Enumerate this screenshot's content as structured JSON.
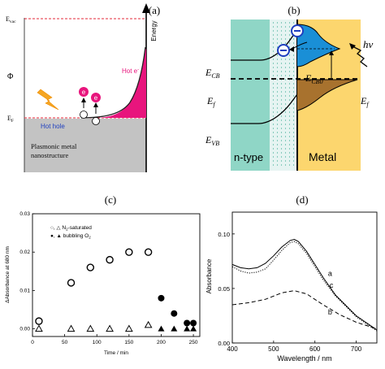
{
  "panels": {
    "a": {
      "label": "(a)",
      "evac": "E",
      "evac_sub": "vac",
      "phi": "Φ",
      "ef": "E",
      "ef_sub": "F",
      "energy_axis": "Energy",
      "hot_electron": "Hot e",
      "hot_electron_sup": "-",
      "electron_symbol": "e",
      "hot_hole": "Hot hole",
      "metal_line1": "Plasmonic metal",
      "metal_line2": "nanostructure",
      "colors": {
        "accent": "#e8157d",
        "dashed": "#e52a3a",
        "metal": "#c3c3c3",
        "bolt": "#f5a623",
        "hole_label": "#1f3fbf"
      }
    },
    "b": {
      "label": "(b)",
      "ecb": "E",
      "ecb_sub": "CB",
      "ef_left": "E",
      "ef_left_sub": "f",
      "evb": "E",
      "evb_sub": "VB",
      "ecb0": "E",
      "ecb0_sub": "CB0",
      "ef_right": "E",
      "ef_right_sub": "f",
      "hv": "hν",
      "electron_symbol": "⊖",
      "semiconductor": "n-type",
      "metal": "Metal",
      "colors": {
        "semiconductor": "#8fd6c6",
        "metal": "#fcd66e",
        "hot_electrons": "#1a8fd6",
        "filled": "#a8722e"
      }
    }
  },
  "chart_data": [
    {
      "panel": "c",
      "label": "(c)",
      "type": "scatter",
      "xlabel": "Time / min",
      "ylabel": "ΔAbsorbance at 680 nm",
      "xlim": [
        0,
        260
      ],
      "ylim": [
        -0.002,
        0.03
      ],
      "xticks": [
        "0",
        "50",
        "100",
        "150",
        "200",
        "250"
      ],
      "yticks": [
        "0.00",
        "0.01",
        "0.02",
        "0.03"
      ],
      "legend": {
        "line1_symbols": "○, △",
        "line1_text": "N",
        "line1_sub": "2",
        "line1_tail": "-saturated",
        "line2_symbols": "●, ▲",
        "line2_text": "bubbling O",
        "line2_sub": "2"
      },
      "series": [
        {
          "marker": "open-circle",
          "points": [
            [
              10,
              0.002
            ],
            [
              60,
              0.012
            ],
            [
              90,
              0.016
            ],
            [
              120,
              0.018
            ],
            [
              150,
              0.02
            ],
            [
              180,
              0.02
            ]
          ]
        },
        {
          "marker": "filled-circle",
          "points": [
            [
              200,
              0.008
            ],
            [
              220,
              0.004
            ],
            [
              240,
              0.0015
            ],
            [
              250,
              0.0015
            ]
          ]
        },
        {
          "marker": "open-triangle",
          "points": [
            [
              10,
              0.0
            ],
            [
              60,
              0.0
            ],
            [
              90,
              0.0
            ],
            [
              120,
              0.0
            ],
            [
              150,
              0.0
            ],
            [
              180,
              0.001
            ]
          ]
        },
        {
          "marker": "filled-triangle",
          "points": [
            [
              200,
              0.0
            ],
            [
              220,
              0.0
            ],
            [
              240,
              0.0
            ],
            [
              250,
              0.0
            ]
          ]
        }
      ]
    },
    {
      "panel": "d",
      "label": "(d)",
      "type": "line",
      "xlabel": "Wavelength / nm",
      "ylabel": "Absorbance",
      "xlim": [
        400,
        750
      ],
      "ylim": [
        0,
        0.12
      ],
      "xticks": [
        "400",
        "500",
        "600",
        "700"
      ],
      "yticks": [
        "0.00",
        "0.05",
        "0.10"
      ],
      "series": [
        {
          "name": "a",
          "style": "solid",
          "x": [
            400,
            420,
            440,
            460,
            480,
            500,
            520,
            540,
            550,
            560,
            580,
            600,
            620,
            650,
            700,
            750
          ],
          "y": [
            0.072,
            0.069,
            0.068,
            0.069,
            0.073,
            0.08,
            0.088,
            0.094,
            0.095,
            0.093,
            0.084,
            0.072,
            0.06,
            0.044,
            0.025,
            0.012
          ]
        },
        {
          "name": "c",
          "style": "dotted",
          "x": [
            400,
            420,
            440,
            460,
            480,
            500,
            520,
            540,
            550,
            560,
            580,
            600,
            620,
            650,
            700,
            750
          ],
          "y": [
            0.07,
            0.066,
            0.064,
            0.065,
            0.068,
            0.076,
            0.085,
            0.092,
            0.093,
            0.091,
            0.082,
            0.07,
            0.058,
            0.043,
            0.024,
            0.011
          ]
        },
        {
          "name": "b",
          "style": "dashed",
          "x": [
            400,
            440,
            480,
            520,
            550,
            580,
            620,
            660,
            700,
            750
          ],
          "y": [
            0.035,
            0.037,
            0.04,
            0.046,
            0.048,
            0.045,
            0.035,
            0.026,
            0.019,
            0.013
          ]
        }
      ]
    }
  ]
}
